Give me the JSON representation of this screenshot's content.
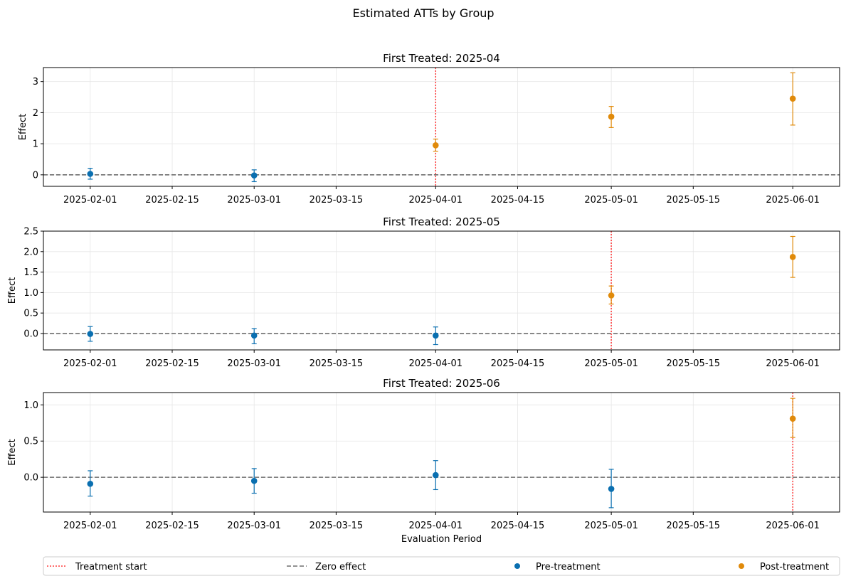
{
  "figure": {
    "suptitle": "Estimated ATTs by Group"
  },
  "colors": {
    "pre": "#0a6fb0",
    "post": "#e08a0a",
    "treatment_line": "#ff3b3b",
    "zero_line": "#6e6e6e",
    "grid": "#e6e6e6"
  },
  "legend": {
    "placement": "bottom",
    "items": [
      {
        "label": "Treatment start",
        "style": "dotted-line",
        "color": "#ff3b3b"
      },
      {
        "label": "Zero effect",
        "style": "dashed-line",
        "color": "#6e6e6e"
      },
      {
        "label": "Pre-treatment",
        "style": "marker",
        "color": "#0a6fb0"
      },
      {
        "label": "Post-treatment",
        "style": "marker",
        "color": "#e08a0a"
      }
    ]
  },
  "chart_data": [
    {
      "type": "scatter",
      "title": "First Treated: 2025-04",
      "xlabel": "",
      "ylabel": "Effect",
      "xticks": [
        "2025-02-01",
        "2025-02-15",
        "2025-03-01",
        "2025-03-15",
        "2025-04-01",
        "2025-04-15",
        "2025-05-01",
        "2025-05-15",
        "2025-06-01"
      ],
      "xlim": [
        "2025-01-24",
        "2025-06-09"
      ],
      "yticks": [
        0,
        1,
        2,
        3
      ],
      "ytick_labels": [
        "0",
        "1",
        "2",
        "3"
      ],
      "ylim": [
        -0.37,
        3.45
      ],
      "treatment_start": "2025-04-01",
      "grid": true,
      "points": [
        {
          "x": "2025-02-01",
          "y": 0.03,
          "lo": -0.14,
          "hi": 0.21,
          "phase": "pre"
        },
        {
          "x": "2025-03-01",
          "y": -0.02,
          "lo": -0.22,
          "hi": 0.16,
          "phase": "pre"
        },
        {
          "x": "2025-04-01",
          "y": 0.95,
          "lo": 0.76,
          "hi": 1.15,
          "phase": "post"
        },
        {
          "x": "2025-05-01",
          "y": 1.87,
          "lo": 1.52,
          "hi": 2.2,
          "phase": "post"
        },
        {
          "x": "2025-06-01",
          "y": 2.45,
          "lo": 1.6,
          "hi": 3.28,
          "phase": "post"
        }
      ]
    },
    {
      "type": "scatter",
      "title": "First Treated: 2025-05",
      "xlabel": "",
      "ylabel": "Effect",
      "xticks": [
        "2025-02-01",
        "2025-02-15",
        "2025-03-01",
        "2025-03-15",
        "2025-04-01",
        "2025-04-15",
        "2025-05-01",
        "2025-05-15",
        "2025-06-01"
      ],
      "xlim": [
        "2025-01-24",
        "2025-06-09"
      ],
      "yticks": [
        0.0,
        0.5,
        1.0,
        1.5,
        2.0,
        2.5
      ],
      "ytick_labels": [
        "0.0",
        "0.5",
        "1.0",
        "1.5",
        "2.0",
        "2.5"
      ],
      "ylim": [
        -0.4,
        2.5
      ],
      "treatment_start": "2025-05-01",
      "grid": true,
      "points": [
        {
          "x": "2025-02-01",
          "y": -0.01,
          "lo": -0.19,
          "hi": 0.17,
          "phase": "pre"
        },
        {
          "x": "2025-03-01",
          "y": -0.05,
          "lo": -0.25,
          "hi": 0.12,
          "phase": "pre"
        },
        {
          "x": "2025-04-01",
          "y": -0.05,
          "lo": -0.27,
          "hi": 0.16,
          "phase": "pre"
        },
        {
          "x": "2025-05-01",
          "y": 0.93,
          "lo": 0.72,
          "hi": 1.16,
          "phase": "post"
        },
        {
          "x": "2025-06-01",
          "y": 1.87,
          "lo": 1.37,
          "hi": 2.37,
          "phase": "post"
        }
      ]
    },
    {
      "type": "scatter",
      "title": "First Treated: 2025-06",
      "xlabel": "Evaluation Period",
      "ylabel": "Effect",
      "xticks": [
        "2025-02-01",
        "2025-02-15",
        "2025-03-01",
        "2025-03-15",
        "2025-04-01",
        "2025-04-15",
        "2025-05-01",
        "2025-05-15",
        "2025-06-01"
      ],
      "xlim": [
        "2025-01-24",
        "2025-06-09"
      ],
      "yticks": [
        0.0,
        0.5,
        1.0
      ],
      "ytick_labels": [
        "0.0",
        "0.5",
        "1.0"
      ],
      "ylim": [
        -0.48,
        1.17
      ],
      "treatment_start": "2025-06-01",
      "grid": true,
      "points": [
        {
          "x": "2025-02-01",
          "y": -0.09,
          "lo": -0.26,
          "hi": 0.09,
          "phase": "pre"
        },
        {
          "x": "2025-03-01",
          "y": -0.05,
          "lo": -0.22,
          "hi": 0.12,
          "phase": "pre"
        },
        {
          "x": "2025-04-01",
          "y": 0.03,
          "lo": -0.17,
          "hi": 0.23,
          "phase": "pre"
        },
        {
          "x": "2025-05-01",
          "y": -0.16,
          "lo": -0.42,
          "hi": 0.11,
          "phase": "pre"
        },
        {
          "x": "2025-06-01",
          "y": 0.81,
          "lo": 0.55,
          "hi": 1.09,
          "phase": "post"
        }
      ]
    }
  ]
}
